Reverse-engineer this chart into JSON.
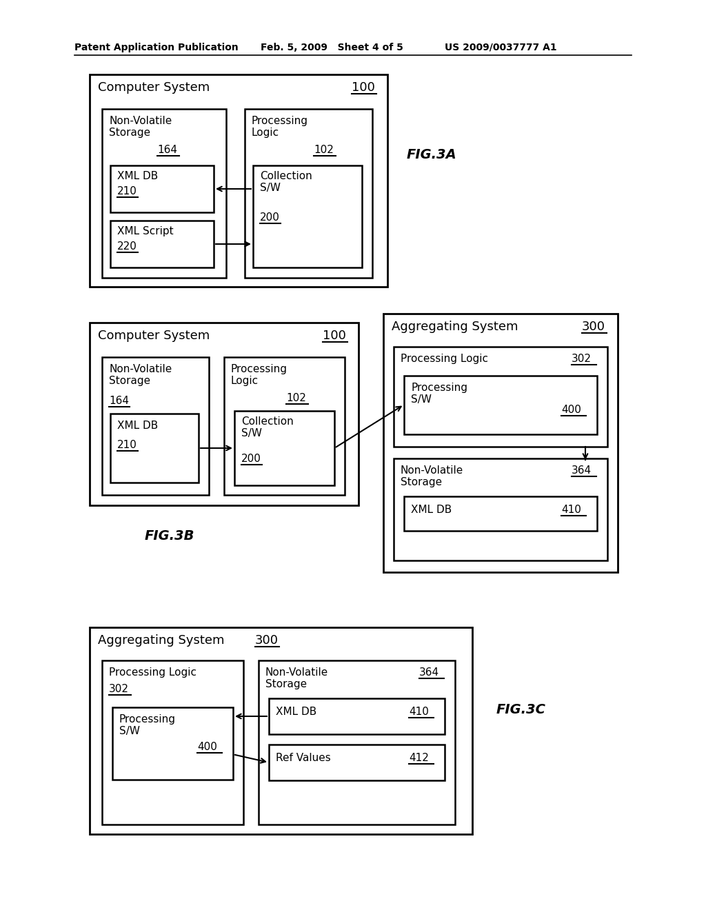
{
  "bg_color": "#ffffff",
  "header_left": "Patent Application Publication",
  "header_mid": "Feb. 5, 2009   Sheet 4 of 5",
  "header_right": "US 2009/0037777 A1"
}
